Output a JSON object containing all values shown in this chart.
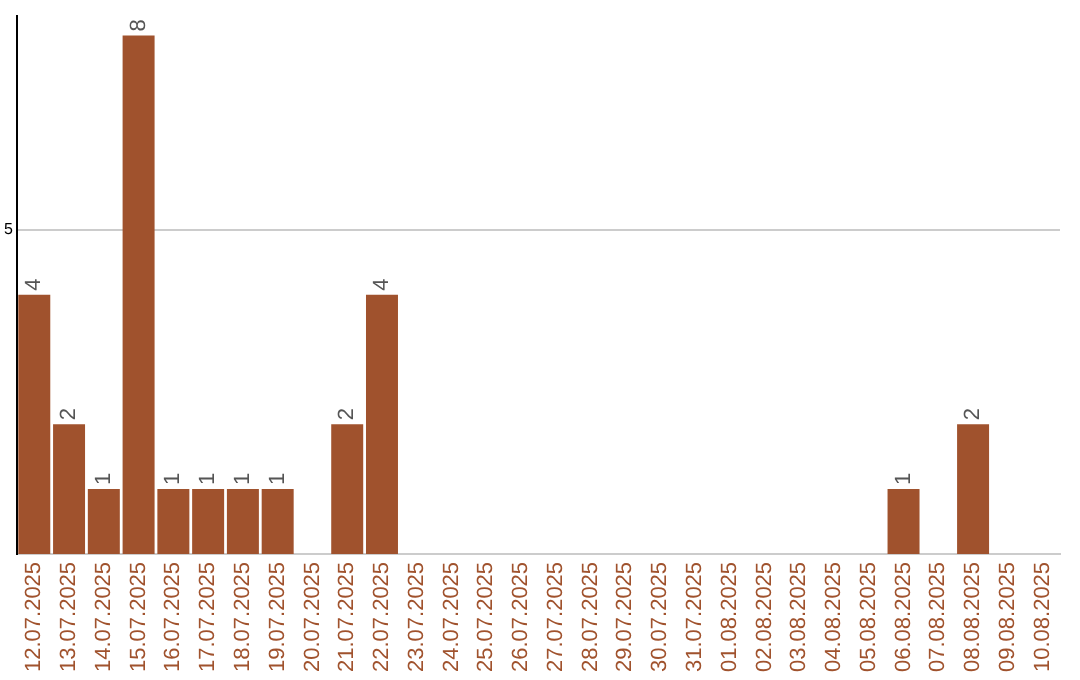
{
  "chart_data": {
    "type": "bar",
    "categories": [
      "12.07.2025",
      "13.07.2025",
      "14.07.2025",
      "15.07.2025",
      "16.07.2025",
      "17.07.2025",
      "18.07.2025",
      "19.07.2025",
      "20.07.2025",
      "21.07.2025",
      "22.07.2025",
      "23.07.2025",
      "24.07.2025",
      "25.07.2025",
      "26.07.2025",
      "27.07.2025",
      "28.07.2025",
      "29.07.2025",
      "30.07.2025",
      "31.07.2025",
      "01.08.2025",
      "02.08.2025",
      "03.08.2025",
      "04.08.2025",
      "05.08.2025",
      "06.08.2025",
      "07.08.2025",
      "08.08.2025",
      "09.08.2025",
      "10.08.2025"
    ],
    "values": [
      4,
      2,
      1,
      8,
      1,
      1,
      1,
      1,
      0,
      2,
      4,
      0,
      0,
      0,
      0,
      0,
      0,
      0,
      0,
      0,
      0,
      0,
      0,
      0,
      0,
      1,
      0,
      2,
      0,
      0
    ],
    "value_labels": [
      "4",
      "2",
      "1",
      "8",
      "1",
      "1",
      "1",
      "1",
      null,
      "2",
      "4",
      null,
      null,
      null,
      null,
      null,
      null,
      null,
      null,
      null,
      null,
      null,
      null,
      null,
      null,
      "1",
      null,
      "2",
      null,
      null
    ],
    "color": "#a0522d",
    "ylim": [
      0,
      8.3
    ],
    "yticks": [
      5
    ],
    "grid": "y",
    "legend": false
  }
}
